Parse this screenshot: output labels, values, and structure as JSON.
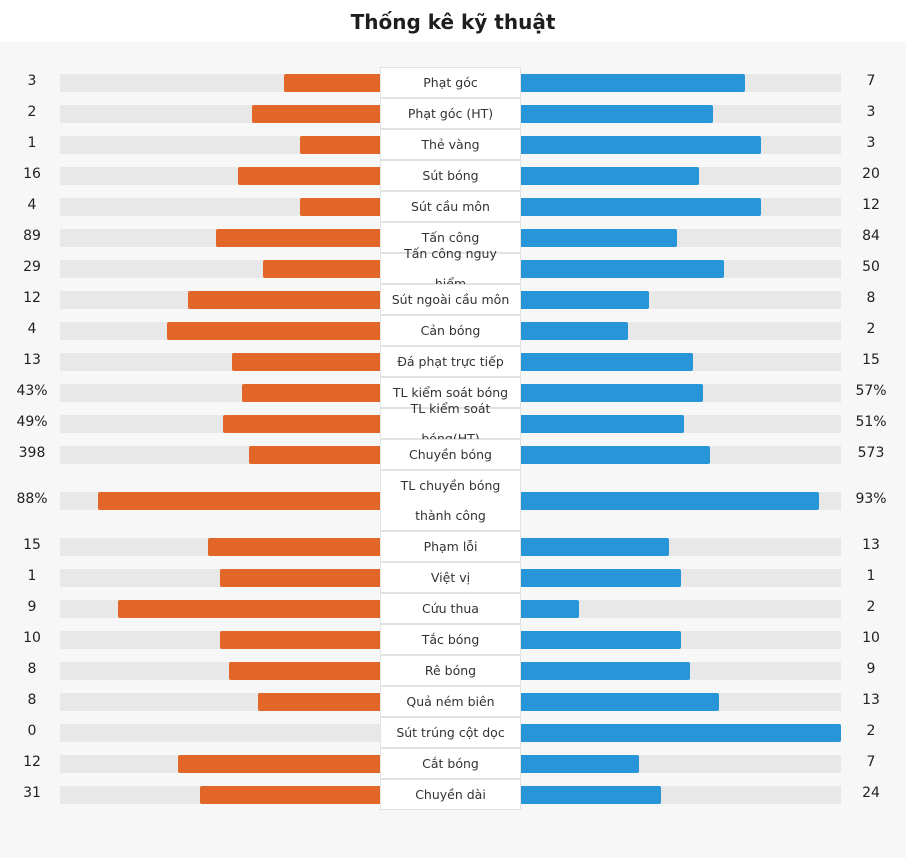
{
  "title": "Thống kê kỹ thuật",
  "colors": {
    "home": "#e26628",
    "away": "#2795d7",
    "track": "#e8e8e8"
  },
  "stats": [
    {
      "label": "Phạt góc",
      "home": "3",
      "away": "7",
      "home_ratio": 0.3,
      "away_ratio": 0.7
    },
    {
      "label": "Phạt góc (HT)",
      "home": "2",
      "away": "3",
      "home_ratio": 0.4,
      "away_ratio": 0.6
    },
    {
      "label": "Thẻ vàng",
      "home": "1",
      "away": "3",
      "home_ratio": 0.25,
      "away_ratio": 0.75
    },
    {
      "label": "Sút bóng",
      "home": "16",
      "away": "20",
      "home_ratio": 0.444,
      "away_ratio": 0.556
    },
    {
      "label": "Sút cầu môn",
      "home": "4",
      "away": "12",
      "home_ratio": 0.25,
      "away_ratio": 0.75
    },
    {
      "label": "Tấn công",
      "home": "89",
      "away": "84",
      "home_ratio": 0.514,
      "away_ratio": 0.486
    },
    {
      "label": "Tấn công nguy hiểm",
      "home": "29",
      "away": "50",
      "home_ratio": 0.367,
      "away_ratio": 0.633
    },
    {
      "label": "Sút ngoài cầu môn",
      "home": "12",
      "away": "8",
      "home_ratio": 0.6,
      "away_ratio": 0.4
    },
    {
      "label": "Cản bóng",
      "home": "4",
      "away": "2",
      "home_ratio": 0.667,
      "away_ratio": 0.333
    },
    {
      "label": "Đá phạt trực tiếp",
      "home": "13",
      "away": "15",
      "home_ratio": 0.464,
      "away_ratio": 0.536
    },
    {
      "label": "TL kiểm soát bóng",
      "home": "43%",
      "away": "57%",
      "home_ratio": 0.43,
      "away_ratio": 0.57
    },
    {
      "label": "TL kiểm soát bóng(HT)",
      "home": "49%",
      "away": "51%",
      "home_ratio": 0.49,
      "away_ratio": 0.51
    },
    {
      "label": "Chuyền bóng",
      "home": "398",
      "away": "573",
      "home_ratio": 0.41,
      "away_ratio": 0.59
    },
    {
      "label": "TL chuyền bóng thành công",
      "home": "88%",
      "away": "93%",
      "home_ratio": 0.88,
      "away_ratio": 0.93
    },
    {
      "label": "Phạm lỗi",
      "home": "15",
      "away": "13",
      "home_ratio": 0.536,
      "away_ratio": 0.464
    },
    {
      "label": "Việt vị",
      "home": "1",
      "away": "1",
      "home_ratio": 0.5,
      "away_ratio": 0.5
    },
    {
      "label": "Cứu thua",
      "home": "9",
      "away": "2",
      "home_ratio": 0.818,
      "away_ratio": 0.182
    },
    {
      "label": "Tắc bóng",
      "home": "10",
      "away": "10",
      "home_ratio": 0.5,
      "away_ratio": 0.5
    },
    {
      "label": "Rê bóng",
      "home": "8",
      "away": "9",
      "home_ratio": 0.471,
      "away_ratio": 0.529
    },
    {
      "label": "Quả ném biên",
      "home": "8",
      "away": "13",
      "home_ratio": 0.381,
      "away_ratio": 0.619
    },
    {
      "label": "Sút trúng cột dọc",
      "home": "0",
      "away": "2",
      "home_ratio": 0.0,
      "away_ratio": 1.0
    },
    {
      "label": "Cắt bóng",
      "home": "12",
      "away": "7",
      "home_ratio": 0.632,
      "away_ratio": 0.368
    },
    {
      "label": "Chuyền dài",
      "home": "31",
      "away": "24",
      "home_ratio": 0.564,
      "away_ratio": 0.436
    }
  ]
}
